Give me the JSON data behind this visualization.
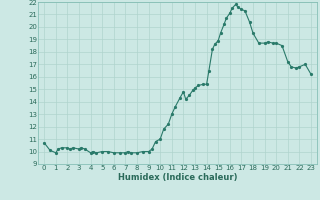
{
  "xlabel": "Humidex (Indice chaleur)",
  "ylabel": "",
  "background_color": "#cce8e4",
  "grid_color": "#b0d4ce",
  "line_color": "#2a7a6a",
  "marker_color": "#2a7a6a",
  "xlim": [
    -0.5,
    23.5
  ],
  "ylim": [
    9,
    22
  ],
  "yticks": [
    9,
    10,
    11,
    12,
    13,
    14,
    15,
    16,
    17,
    18,
    19,
    20,
    21,
    22
  ],
  "xticks": [
    0,
    1,
    2,
    3,
    4,
    5,
    6,
    7,
    8,
    9,
    10,
    11,
    12,
    13,
    14,
    15,
    16,
    17,
    18,
    19,
    20,
    21,
    22,
    23
  ],
  "x": [
    0,
    0.5,
    1,
    1.2,
    1.5,
    2,
    2.2,
    2.5,
    3,
    3.2,
    3.5,
    4,
    4.2,
    4.5,
    5,
    5.5,
    6,
    6.5,
    7,
    7.2,
    7.5,
    8,
    8.5,
    9,
    9.3,
    9.6,
    10,
    10.3,
    10.7,
    11,
    11.3,
    11.7,
    12,
    12.2,
    12.5,
    12.8,
    13,
    13.3,
    13.7,
    14,
    14.2,
    14.5,
    14.7,
    15,
    15.2,
    15.5,
    15.7,
    16,
    16.2,
    16.5,
    16.7,
    17,
    17.3,
    17.7,
    18,
    18.5,
    19,
    19.3,
    19.7,
    20,
    20.5,
    21,
    21.3,
    21.7,
    22,
    22.5,
    23
  ],
  "y": [
    10.7,
    10.1,
    9.9,
    10.2,
    10.3,
    10.3,
    10.2,
    10.3,
    10.2,
    10.3,
    10.2,
    9.9,
    10.0,
    9.9,
    10.0,
    10.0,
    9.9,
    9.9,
    9.9,
    10.0,
    9.9,
    9.9,
    10.0,
    10.0,
    10.2,
    10.8,
    11.0,
    11.8,
    12.2,
    13.0,
    13.6,
    14.3,
    14.8,
    14.2,
    14.5,
    14.9,
    15.1,
    15.3,
    15.4,
    15.4,
    16.5,
    18.2,
    18.6,
    18.9,
    19.5,
    20.2,
    20.7,
    21.1,
    21.5,
    21.8,
    21.6,
    21.4,
    21.3,
    20.4,
    19.5,
    18.7,
    18.7,
    18.8,
    18.7,
    18.7,
    18.5,
    17.2,
    16.8,
    16.7,
    16.8,
    17.0,
    16.2
  ]
}
